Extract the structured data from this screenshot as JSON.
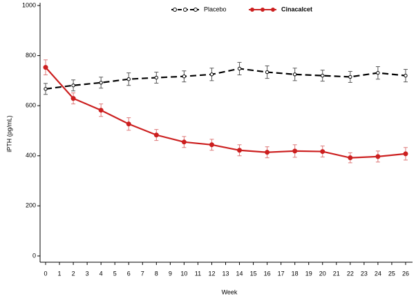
{
  "chart_data": {
    "type": "line",
    "x_label": "Week",
    "y_label": "iPTH (pg/mL)",
    "x": [
      0,
      2,
      4,
      6,
      8,
      10,
      12,
      14,
      16,
      18,
      20,
      22,
      24,
      26
    ],
    "series": [
      {
        "name": "Placebo",
        "color": "#000000",
        "line_style": "dashed",
        "marker": "open",
        "values": [
          667,
          681,
          692,
          706,
          712,
          717,
          725,
          748,
          734,
          725,
          720,
          715,
          731,
          720
        ],
        "errors": [
          22,
          22,
          22,
          25,
          22,
          22,
          25,
          25,
          25,
          25,
          22,
          22,
          25,
          25
        ]
      },
      {
        "name": "Cinacalcet",
        "color": "#cc1f1f",
        "line_style": "solid",
        "marker": "filled",
        "values": [
          753,
          629,
          582,
          527,
          483,
          455,
          444,
          422,
          414,
          419,
          417,
          392,
          397,
          408
        ],
        "errors": [
          30,
          22,
          25,
          25,
          22,
          22,
          22,
          22,
          22,
          25,
          22,
          20,
          22,
          25
        ]
      }
    ],
    "xlim": [
      -0.4,
      26.5
    ],
    "ylim": [
      -25,
      1000
    ],
    "xticks": [
      0,
      1,
      2,
      3,
      4,
      5,
      6,
      7,
      8,
      9,
      10,
      11,
      12,
      13,
      14,
      15,
      16,
      17,
      18,
      19,
      20,
      21,
      22,
      23,
      24,
      25,
      26
    ],
    "yticks": [
      0,
      200,
      400,
      600,
      800,
      1000
    ],
    "legend": "top"
  }
}
